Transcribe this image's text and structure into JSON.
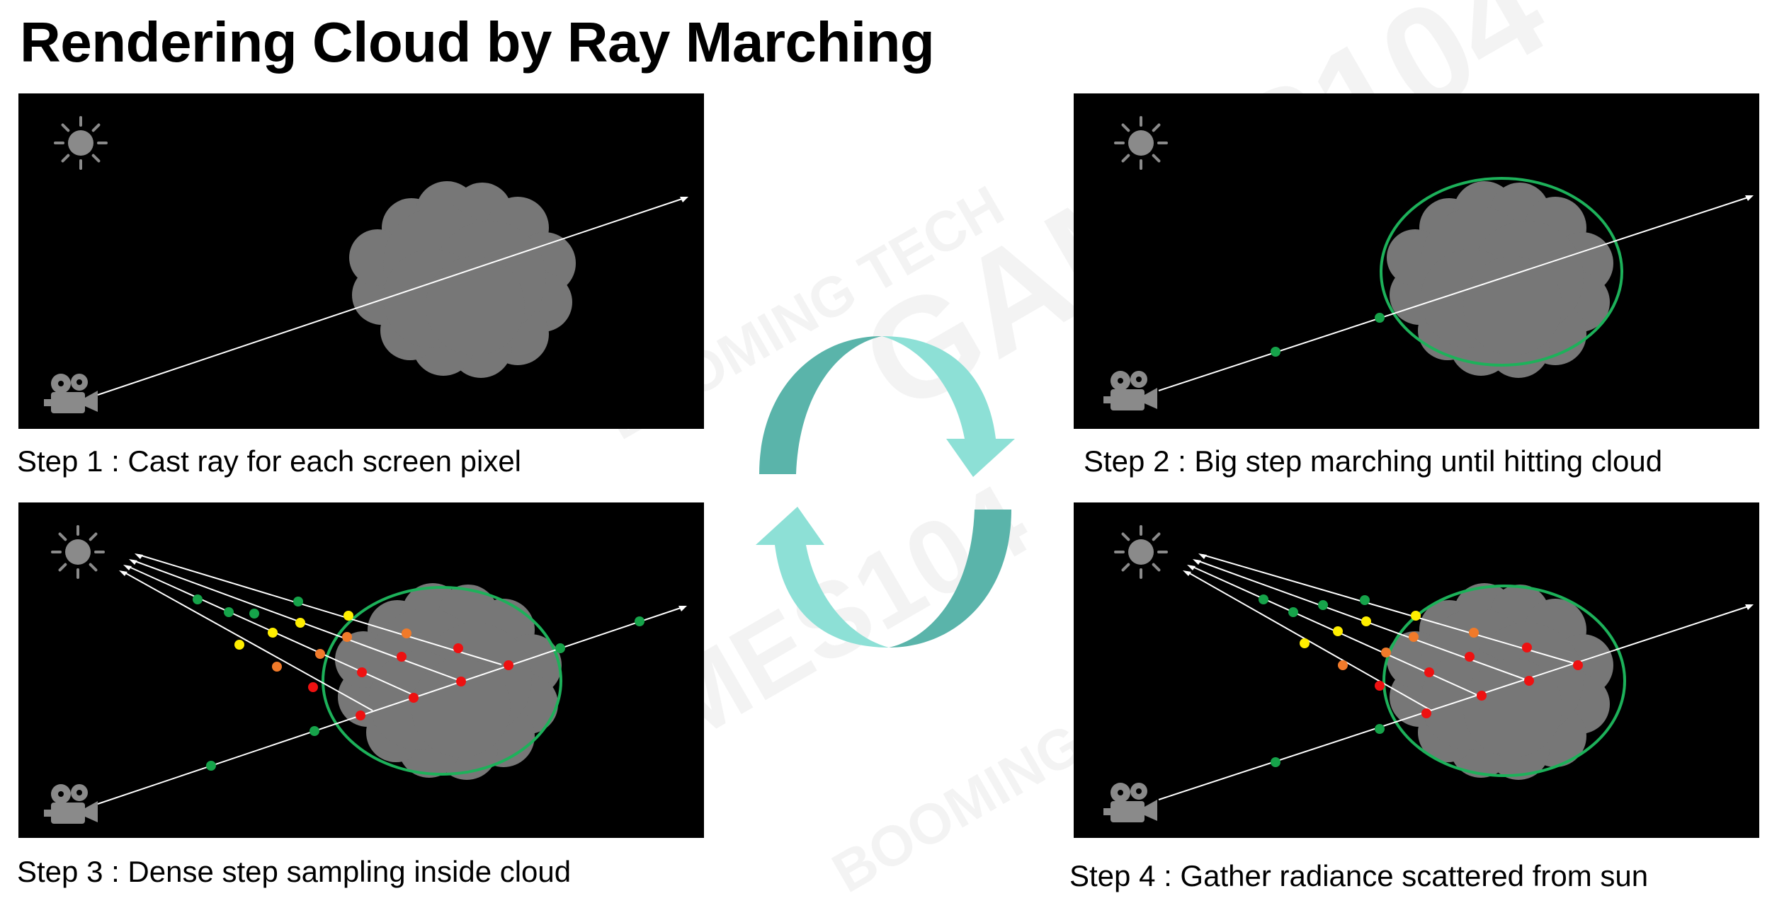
{
  "title": "Rendering Cloud by Ray Marching",
  "panels": [
    {
      "id": "step1",
      "caption": "Step 1 : Cast ray for each screen pixel"
    },
    {
      "id": "step2",
      "caption": "Step 2 : Big step marching until hitting cloud"
    },
    {
      "id": "step3",
      "caption": "Step 3 : Dense step sampling inside cloud"
    },
    {
      "id": "step4",
      "caption": "Step 4 : Gather radiance scattered from sun"
    }
  ],
  "watermarks": {
    "games104": "GAMES104",
    "booming_tech": "BOOMING TECH"
  },
  "colors": {
    "panel_bg": "#000000",
    "cloud": "#777777",
    "bounding_ellipse": "#1db15a",
    "sample_green": "#16a34a",
    "sample_yellow": "#ffee00",
    "sample_orange": "#f07a2a",
    "sample_red": "#ee1111",
    "arrow_dark": "#5ab4aa",
    "arrow_light": "#8de0d6",
    "icon_gray": "#8a8a8a"
  },
  "icons": [
    "sun-icon",
    "camera-icon",
    "cycle-arrows-icon"
  ]
}
